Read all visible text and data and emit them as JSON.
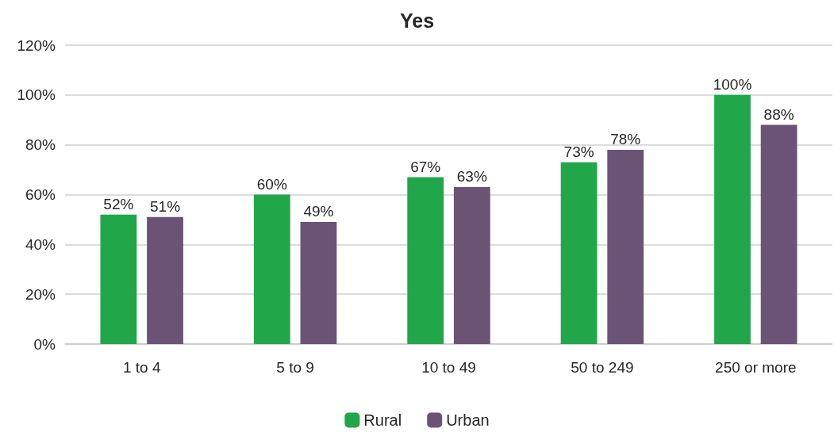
{
  "chart_data": {
    "type": "bar",
    "title": "Yes",
    "categories": [
      "1 to 4",
      "5 to 9",
      "10 to 49",
      "50 to 249",
      "250 or more"
    ],
    "series": [
      {
        "name": "Rural",
        "color": "#22a64a",
        "values": [
          52,
          60,
          67,
          73,
          100
        ],
        "value_labels": [
          "52%",
          "60%",
          "67%",
          "73%",
          "100%"
        ]
      },
      {
        "name": "Urban",
        "color": "#6b5376",
        "values": [
          51,
          49,
          63,
          78,
          88
        ],
        "value_labels": [
          "51%",
          "49%",
          "63%",
          "78%",
          "88%"
        ]
      }
    ],
    "ylim": [
      0,
      120
    ],
    "yticks": [
      {
        "value": 0,
        "label": "0%"
      },
      {
        "value": 20,
        "label": "20%"
      },
      {
        "value": 40,
        "label": "40%"
      },
      {
        "value": 60,
        "label": "60%"
      },
      {
        "value": 80,
        "label": "80%"
      },
      {
        "value": 100,
        "label": "100%"
      },
      {
        "value": 120,
        "label": "120%"
      }
    ],
    "grid": "y",
    "legend": "bottom"
  }
}
